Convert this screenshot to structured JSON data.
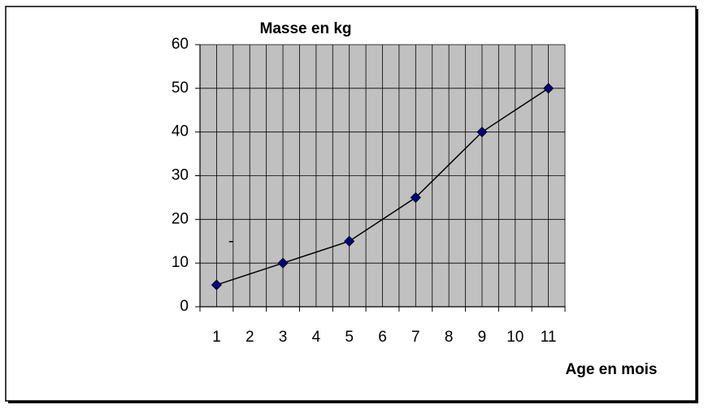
{
  "chart_data": {
    "type": "line",
    "title": "Masse en kg",
    "x_label": "Age en mois",
    "annotation": "-",
    "x": [
      1,
      3,
      5,
      7,
      9,
      11
    ],
    "series": [
      {
        "color": "#000080",
        "values": [
          5,
          10,
          15,
          25,
          40,
          50
        ]
      }
    ],
    "xlim": [
      0.5,
      11.5
    ],
    "xticks": [
      1,
      2,
      3,
      4,
      5,
      6,
      7,
      8,
      9,
      10,
      11
    ],
    "ylim": [
      0,
      60
    ],
    "yticks": [
      0,
      10,
      20,
      30,
      40,
      50,
      60
    ],
    "grid": true
  }
}
